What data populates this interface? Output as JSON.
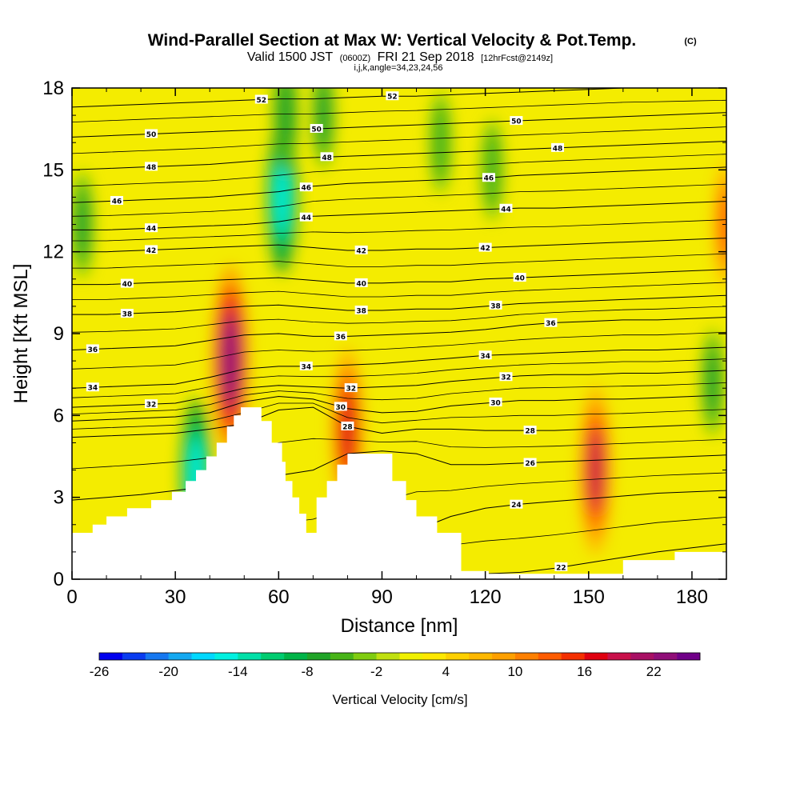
{
  "chart_data": {
    "type": "heatmap",
    "title": "Wind-Parallel Section at Max W: Vertical Velocity & Pot.Temp.",
    "title_mark": "(C)",
    "subtitle": {
      "valid": "Valid 1500 JST",
      "utc": "(0600Z)",
      "date": "FRI 21 Sep 2018",
      "forecast": "[12hrFcst@2149z]",
      "indices": "i,j,k,angle=34,23,24,56"
    },
    "xlabel": "Distance [nm]",
    "ylabel": "Height [Kft MSL]",
    "xlim": [
      0,
      190
    ],
    "ylim": [
      0,
      18
    ],
    "xticks": [
      "0",
      "30",
      "60",
      "90",
      "120",
      "150",
      "180"
    ],
    "yticks": [
      "0",
      "3",
      "6",
      "9",
      "12",
      "15",
      "18"
    ],
    "colorbar": {
      "label": "Vertical Velocity [cm/s]",
      "range": [
        -26,
        26
      ],
      "step": 2,
      "tick_labels": [
        "-26",
        "-20",
        "-14",
        "-8",
        "-2",
        "4",
        "10",
        "16",
        "22"
      ],
      "colors": [
        "#0000ee",
        "#0a3cf0",
        "#1678f0",
        "#14a8f0",
        "#00d8ff",
        "#00f0e0",
        "#00e0a8",
        "#00cc70",
        "#00b448",
        "#20a428",
        "#48b418",
        "#80cc10",
        "#c0e010",
        "#f0f000",
        "#ffe800",
        "#ffd000",
        "#ffb800",
        "#ffa000",
        "#ff8000",
        "#ff5c00",
        "#f43000",
        "#e00010",
        "#c8104a",
        "#a81064",
        "#900e78",
        "#700088"
      ]
    },
    "vertical_velocity_features": [
      {
        "x": 46,
        "y": 8,
        "w": 22,
        "kind": "updraft"
      },
      {
        "x": 152,
        "y": 4,
        "w": 18,
        "kind": "updraft"
      },
      {
        "x": 80,
        "y": 5.5,
        "w": 17,
        "kind": "updraft"
      },
      {
        "x": 190,
        "y": 13,
        "w": 12,
        "kind": "updraft"
      },
      {
        "x": 61,
        "y": 14,
        "w": -15,
        "kind": "downdraft"
      },
      {
        "x": 36,
        "y": 3.8,
        "w": -15,
        "kind": "downdraft"
      },
      {
        "x": 62,
        "y": 17,
        "w": -8,
        "kind": "downdraft"
      },
      {
        "x": 3,
        "y": 13,
        "w": -7,
        "kind": "downdraft"
      },
      {
        "x": 186,
        "y": 7.2,
        "w": -7,
        "kind": "downdraft"
      },
      {
        "x": 73,
        "y": 17,
        "w": -7,
        "kind": "downdraft"
      },
      {
        "x": 107,
        "y": 16,
        "w": -6,
        "kind": "downdraft"
      },
      {
        "x": 122,
        "y": 15,
        "w": -6,
        "kind": "downdraft"
      }
    ],
    "terrain": [
      [
        0,
        1.7
      ],
      [
        6,
        1.7
      ],
      [
        6,
        2.0
      ],
      [
        10,
        2.0
      ],
      [
        10,
        2.3
      ],
      [
        16,
        2.3
      ],
      [
        16,
        2.6
      ],
      [
        23,
        2.6
      ],
      [
        23,
        2.9
      ],
      [
        29,
        2.9
      ],
      [
        29,
        3.2
      ],
      [
        33,
        3.2
      ],
      [
        33,
        3.6
      ],
      [
        36,
        3.6
      ],
      [
        36,
        4.0
      ],
      [
        39,
        4.0
      ],
      [
        39,
        4.5
      ],
      [
        42,
        4.5
      ],
      [
        42,
        5.0
      ],
      [
        45,
        5.0
      ],
      [
        45,
        5.6
      ],
      [
        47,
        5.6
      ],
      [
        47,
        6.0
      ],
      [
        49,
        6.0
      ],
      [
        49,
        6.3
      ],
      [
        55,
        6.3
      ],
      [
        55,
        5.8
      ],
      [
        58,
        5.8
      ],
      [
        58,
        5.0
      ],
      [
        61,
        5.0
      ],
      [
        61,
        4.3
      ],
      [
        62,
        4.3
      ],
      [
        62,
        3.6
      ],
      [
        64,
        3.6
      ],
      [
        64,
        3.0
      ],
      [
        66,
        3.0
      ],
      [
        66,
        2.4
      ],
      [
        68,
        2.4
      ],
      [
        68,
        1.7
      ],
      [
        71,
        1.7
      ],
      [
        71,
        3.0
      ],
      [
        74,
        3.0
      ],
      [
        74,
        3.6
      ],
      [
        77,
        3.6
      ],
      [
        77,
        4.2
      ],
      [
        80,
        4.2
      ],
      [
        80,
        4.6
      ],
      [
        93,
        4.6
      ],
      [
        93,
        3.6
      ],
      [
        97,
        3.6
      ],
      [
        97,
        2.9
      ],
      [
        100,
        2.9
      ],
      [
        100,
        2.3
      ],
      [
        106,
        2.3
      ],
      [
        106,
        1.7
      ],
      [
        113,
        1.7
      ],
      [
        113,
        0.3
      ],
      [
        121,
        0.3
      ],
      [
        121,
        0.2
      ],
      [
        160,
        0.2
      ],
      [
        160,
        0.7
      ],
      [
        175,
        0.7
      ],
      [
        175,
        1.0
      ],
      [
        190,
        1.0
      ]
    ],
    "contours": [
      {
        "value": 22,
        "y": [
          0.2,
          0.2,
          0.2,
          0.2,
          0.2,
          0.2,
          0.2,
          0.2,
          0.2,
          0.2,
          0.2,
          0.2,
          0.2,
          0.25,
          0.4,
          0.6,
          0.8,
          1.0,
          1.15,
          1.3
        ]
      },
      {
        "value": 24,
        "y": [
          0.3,
          0.3,
          0.3,
          0.3,
          0.3,
          0.3,
          0.3,
          0.4,
          0.6,
          1.0,
          1.8,
          2.3,
          2.6,
          2.75,
          2.85,
          2.95,
          3.05,
          3.15,
          3.2,
          3.25
        ]
      },
      {
        "value": 26,
        "y": [
          2.9,
          3.0,
          3.1,
          3.25,
          3.4,
          3.6,
          3.8,
          4.0,
          4.6,
          4.7,
          4.6,
          4.2,
          4.2,
          4.25,
          4.3,
          4.35,
          4.4,
          4.45,
          4.5,
          4.55
        ]
      },
      {
        "value": 28,
        "y": [
          5.2,
          5.25,
          5.3,
          5.35,
          5.5,
          5.7,
          6.2,
          6.3,
          5.6,
          5.35,
          5.5,
          5.5,
          5.45,
          5.45,
          5.45,
          5.5,
          5.55,
          5.6,
          5.65,
          5.7
        ]
      },
      {
        "value": 30,
        "y": [
          5.8,
          5.85,
          5.9,
          5.95,
          6.1,
          6.5,
          6.7,
          6.6,
          6.25,
          6.1,
          6.15,
          6.35,
          6.45,
          6.55,
          6.55,
          6.6,
          6.6,
          6.65,
          6.7,
          6.75
        ]
      },
      {
        "value": 32,
        "y": [
          6.3,
          6.35,
          6.4,
          6.45,
          6.7,
          7.0,
          7.1,
          7.05,
          7.0,
          7.05,
          7.1,
          7.25,
          7.35,
          7.45,
          7.5,
          7.5,
          7.55,
          7.55,
          7.6,
          7.65
        ]
      },
      {
        "value": 34,
        "y": [
          7.0,
          7.05,
          7.1,
          7.15,
          7.4,
          7.7,
          7.8,
          7.8,
          7.85,
          7.9,
          8.0,
          8.1,
          8.2,
          8.25,
          8.3,
          8.35,
          8.4,
          8.4,
          8.45,
          8.5
        ]
      },
      {
        "value": 36,
        "y": [
          8.4,
          8.45,
          8.5,
          8.55,
          8.75,
          8.95,
          9.0,
          8.9,
          8.9,
          8.95,
          9.0,
          9.05,
          9.15,
          9.3,
          9.4,
          9.45,
          9.5,
          9.5,
          9.55,
          9.6
        ]
      },
      {
        "value": 38,
        "y": [
          9.7,
          9.7,
          9.75,
          9.8,
          9.9,
          10.0,
          10.05,
          9.95,
          9.85,
          9.85,
          9.9,
          9.9,
          10.0,
          10.1,
          10.15,
          10.2,
          10.25,
          10.3,
          10.35,
          10.4
        ]
      },
      {
        "value": 40,
        "y": [
          10.8,
          10.8,
          10.85,
          10.9,
          10.95,
          11.0,
          11.05,
          10.95,
          10.85,
          10.85,
          10.9,
          10.9,
          11.0,
          11.05,
          11.1,
          11.15,
          11.2,
          11.25,
          11.3,
          11.35
        ]
      },
      {
        "value": 42,
        "y": [
          12.0,
          12.0,
          12.05,
          12.1,
          12.15,
          12.2,
          12.25,
          12.15,
          12.05,
          12.05,
          12.1,
          12.1,
          12.15,
          12.2,
          12.25,
          12.3,
          12.35,
          12.4,
          12.45,
          12.5
        ]
      },
      {
        "value": 44,
        "y": [
          12.8,
          12.8,
          12.85,
          12.9,
          12.95,
          13.0,
          13.1,
          13.3,
          13.35,
          13.4,
          13.45,
          13.5,
          13.55,
          13.6,
          13.6,
          13.65,
          13.7,
          13.75,
          13.8,
          13.85
        ]
      },
      {
        "value": 46,
        "y": [
          13.8,
          13.85,
          13.9,
          13.95,
          14.0,
          14.1,
          14.2,
          14.4,
          14.5,
          14.55,
          14.6,
          14.65,
          14.7,
          14.8,
          14.85,
          14.9,
          14.95,
          15.0,
          15.05,
          15.1
        ]
      },
      {
        "value": 48,
        "y": [
          15.0,
          15.05,
          15.1,
          15.15,
          15.2,
          15.3,
          15.4,
          15.45,
          15.5,
          15.55,
          15.6,
          15.65,
          15.7,
          15.75,
          15.8,
          15.85,
          15.9,
          15.95,
          16.0,
          16.05
        ]
      },
      {
        "value": 50,
        "y": [
          16.2,
          16.25,
          16.3,
          16.35,
          16.4,
          16.45,
          16.5,
          16.5,
          16.55,
          16.6,
          16.65,
          16.7,
          16.75,
          16.8,
          16.85,
          16.9,
          16.95,
          17.0,
          17.05,
          17.1
        ]
      },
      {
        "value": 52,
        "y": [
          17.3,
          17.35,
          17.4,
          17.45,
          17.5,
          17.55,
          17.6,
          17.6,
          17.65,
          17.7,
          17.7,
          17.75,
          17.8,
          17.85,
          17.9,
          17.95,
          18.0,
          18.0,
          18.0,
          18.0
        ]
      }
    ],
    "contour_label_positions": [
      {
        "text": "52",
        "x": 55,
        "v": 52
      },
      {
        "text": "52",
        "x": 93,
        "v": 52
      },
      {
        "text": "50",
        "x": 23,
        "v": 50
      },
      {
        "text": "50",
        "x": 71,
        "v": 50
      },
      {
        "text": "50",
        "x": 129,
        "v": 50
      },
      {
        "text": "48",
        "x": 23,
        "v": 48
      },
      {
        "text": "48",
        "x": 74,
        "v": 48
      },
      {
        "text": "48",
        "x": 141,
        "v": 48
      },
      {
        "text": "46",
        "x": 13,
        "v": 46
      },
      {
        "text": "46",
        "x": 68,
        "v": 46
      },
      {
        "text": "46",
        "x": 121,
        "v": 46
      },
      {
        "text": "44",
        "x": 23,
        "v": 44
      },
      {
        "text": "44",
        "x": 68,
        "v": 44
      },
      {
        "text": "44",
        "x": 126,
        "v": 44
      },
      {
        "text": "42",
        "x": 23,
        "v": 42
      },
      {
        "text": "42",
        "x": 84,
        "v": 42
      },
      {
        "text": "42",
        "x": 120,
        "v": 42
      },
      {
        "text": "40",
        "x": 16,
        "v": 40
      },
      {
        "text": "40",
        "x": 84,
        "v": 40
      },
      {
        "text": "40",
        "x": 130,
        "v": 40
      },
      {
        "text": "38",
        "x": 16,
        "v": 38
      },
      {
        "text": "38",
        "x": 84,
        "v": 38
      },
      {
        "text": "38",
        "x": 123,
        "v": 38
      },
      {
        "text": "36",
        "x": 6,
        "v": 36
      },
      {
        "text": "36",
        "x": 78,
        "v": 36
      },
      {
        "text": "36",
        "x": 139,
        "v": 36
      },
      {
        "text": "34",
        "x": 6,
        "v": 34
      },
      {
        "text": "34",
        "x": 68,
        "v": 34
      },
      {
        "text": "34",
        "x": 120,
        "v": 34
      },
      {
        "text": "32",
        "x": 23,
        "v": 32
      },
      {
        "text": "32",
        "x": 81,
        "v": 32
      },
      {
        "text": "32",
        "x": 126,
        "v": 32
      },
      {
        "text": "30",
        "x": 78,
        "v": 30
      },
      {
        "text": "30",
        "x": 123,
        "v": 30
      },
      {
        "text": "28",
        "x": 80,
        "v": 28
      },
      {
        "text": "28",
        "x": 133,
        "v": 28
      },
      {
        "text": "26",
        "x": 133,
        "v": 26
      },
      {
        "text": "24",
        "x": 129,
        "v": 24
      },
      {
        "text": "22",
        "x": 142,
        "v": 22
      }
    ]
  }
}
